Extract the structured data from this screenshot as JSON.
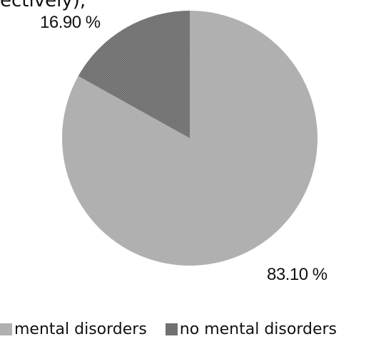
{
  "fragment_text": "ectively);",
  "colors": {
    "mental_disorders": "#b0b0b0",
    "no_mental_disorders": "#717171"
  },
  "chart_data": {
    "type": "pie",
    "title": "",
    "categories": [
      "mental disorders",
      "no mental disorders"
    ],
    "values": [
      83.1,
      16.9
    ],
    "labels": [
      "83.10 %",
      "16.90 %"
    ],
    "legend_position": "bottom"
  }
}
